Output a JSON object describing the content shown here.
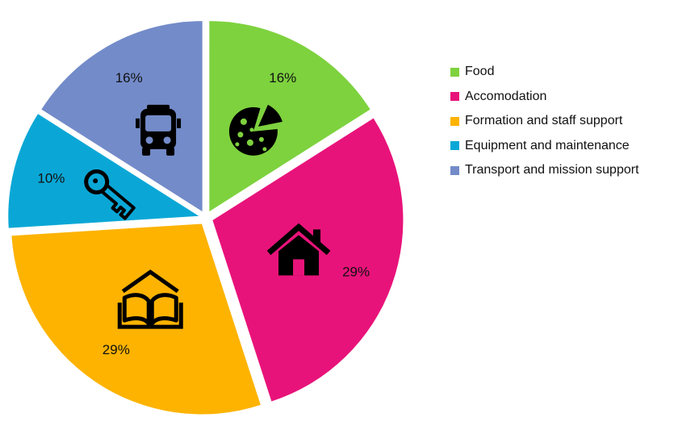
{
  "chart_data": {
    "type": "pie",
    "title": "",
    "legend_position": "right",
    "slices": [
      {
        "label": "Food",
        "value": 16,
        "display": "16%",
        "color": "#7ed23e",
        "icon": "pizza-icon"
      },
      {
        "label": "Accomodation",
        "value": 29,
        "display": "29%",
        "color": "#e8137a",
        "icon": "house-icon"
      },
      {
        "label": "Formation and staff support",
        "value": 29,
        "display": "29%",
        "color": "#fdb300",
        "icon": "open-book-icon"
      },
      {
        "label": "Equipment and maintenance",
        "value": 10,
        "display": "10%",
        "color": "#0aa7d6",
        "icon": "key-icon"
      },
      {
        "label": "Transport and mission support",
        "value": 16,
        "display": "16%",
        "color": "#738bc9",
        "icon": "bus-icon"
      }
    ]
  }
}
